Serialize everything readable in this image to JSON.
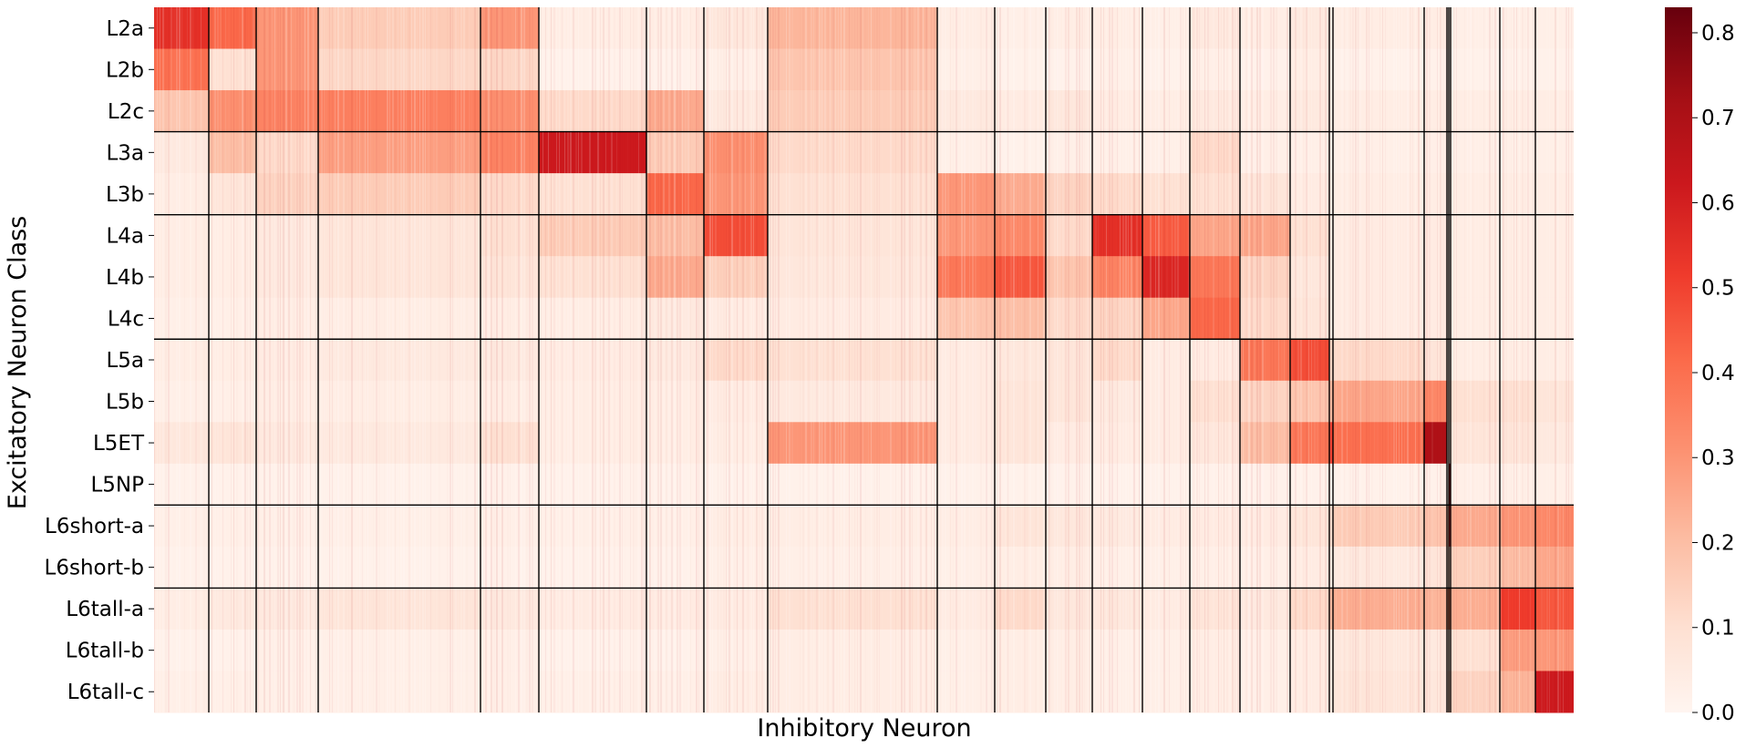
{
  "chart_data": {
    "type": "heatmap",
    "title": "",
    "xlabel": "Inhibitory Neuron",
    "ylabel": "Excitatory Neuron Class",
    "rows": [
      "L2a",
      "L2b",
      "L2c",
      "L3a",
      "L3b",
      "L4a",
      "L4b",
      "L4c",
      "L5a",
      "L5b",
      "L5ET",
      "L5NP",
      "L6short-a",
      "L6short-b",
      "L6tall-a",
      "L6tall-b",
      "L6tall-c"
    ],
    "row_group_boundaries_after": [
      3,
      5,
      8,
      12,
      14
    ],
    "column_groups": 25,
    "colormap": "Reds",
    "colorbar": {
      "min": 0.0,
      "max": 0.83,
      "ticks": [
        0.0,
        0.1,
        0.2,
        0.3,
        0.4,
        0.5,
        0.6,
        0.7,
        0.8
      ],
      "tick_labels": [
        "0.0",
        "0.1",
        "0.2",
        "0.3",
        "0.4",
        "0.5",
        "0.6",
        "0.7",
        "0.8"
      ]
    },
    "block_values": [
      [
        0.55,
        0.42,
        0.3,
        0.16,
        0.3,
        0.04,
        0.04,
        0.07,
        0.22,
        0.04,
        0.03,
        0.04,
        0.04,
        0.03,
        0.06,
        0.04,
        0.06,
        0.04,
        0.04,
        0.04,
        0.03,
        0.03,
        0.03,
        0.03,
        0.03
      ],
      [
        0.4,
        0.1,
        0.3,
        0.13,
        0.13,
        0.02,
        0.02,
        0.03,
        0.18,
        0.03,
        0.02,
        0.02,
        0.03,
        0.02,
        0.03,
        0.02,
        0.04,
        0.03,
        0.02,
        0.02,
        0.02,
        0.02,
        0.02,
        0.02,
        0.02
      ],
      [
        0.18,
        0.32,
        0.35,
        0.36,
        0.32,
        0.12,
        0.25,
        0.06,
        0.16,
        0.06,
        0.05,
        0.07,
        0.05,
        0.04,
        0.06,
        0.04,
        0.06,
        0.04,
        0.04,
        0.04,
        0.04,
        0.04,
        0.04,
        0.04,
        0.04
      ],
      [
        0.06,
        0.2,
        0.12,
        0.28,
        0.35,
        0.62,
        0.16,
        0.32,
        0.12,
        0.03,
        0.02,
        0.03,
        0.03,
        0.03,
        0.12,
        0.03,
        0.03,
        0.03,
        0.03,
        0.03,
        0.03,
        0.03,
        0.03,
        0.03,
        0.03
      ],
      [
        0.04,
        0.08,
        0.14,
        0.16,
        0.12,
        0.1,
        0.42,
        0.3,
        0.1,
        0.3,
        0.25,
        0.14,
        0.12,
        0.1,
        0.1,
        0.08,
        0.05,
        0.04,
        0.04,
        0.04,
        0.04,
        0.04,
        0.04,
        0.04,
        0.04
      ],
      [
        0.04,
        0.04,
        0.06,
        0.08,
        0.1,
        0.16,
        0.2,
        0.48,
        0.08,
        0.3,
        0.34,
        0.12,
        0.55,
        0.45,
        0.26,
        0.26,
        0.1,
        0.05,
        0.05,
        0.05,
        0.04,
        0.04,
        0.04,
        0.04,
        0.04
      ],
      [
        0.04,
        0.04,
        0.06,
        0.08,
        0.08,
        0.1,
        0.25,
        0.15,
        0.07,
        0.38,
        0.46,
        0.18,
        0.35,
        0.58,
        0.38,
        0.14,
        0.07,
        0.05,
        0.05,
        0.05,
        0.04,
        0.04,
        0.04,
        0.04,
        0.04
      ],
      [
        0.03,
        0.03,
        0.04,
        0.04,
        0.04,
        0.04,
        0.06,
        0.05,
        0.05,
        0.18,
        0.2,
        0.12,
        0.14,
        0.26,
        0.42,
        0.12,
        0.08,
        0.05,
        0.05,
        0.05,
        0.04,
        0.04,
        0.04,
        0.04,
        0.04
      ],
      [
        0.04,
        0.04,
        0.05,
        0.06,
        0.06,
        0.05,
        0.06,
        0.12,
        0.1,
        0.05,
        0.07,
        0.08,
        0.12,
        0.05,
        0.05,
        0.38,
        0.48,
        0.14,
        0.12,
        0.08,
        0.04,
        0.04,
        0.04,
        0.04,
        0.04
      ],
      [
        0.03,
        0.03,
        0.04,
        0.04,
        0.04,
        0.04,
        0.04,
        0.05,
        0.06,
        0.05,
        0.08,
        0.08,
        0.06,
        0.05,
        0.1,
        0.14,
        0.18,
        0.22,
        0.26,
        0.34,
        0.1,
        0.1,
        0.1,
        0.1,
        0.08
      ],
      [
        0.07,
        0.08,
        0.06,
        0.06,
        0.1,
        0.04,
        0.04,
        0.04,
        0.3,
        0.05,
        0.08,
        0.05,
        0.05,
        0.05,
        0.07,
        0.2,
        0.38,
        0.52,
        0.4,
        0.7,
        0.08,
        0.08,
        0.08,
        0.08,
        0.06
      ],
      [
        0.02,
        0.02,
        0.02,
        0.02,
        0.02,
        0.02,
        0.02,
        0.02,
        0.02,
        0.02,
        0.02,
        0.02,
        0.02,
        0.02,
        0.02,
        0.02,
        0.02,
        0.02,
        0.02,
        0.02,
        0.03,
        0.75,
        0.03,
        0.03,
        0.03
      ],
      [
        0.03,
        0.03,
        0.03,
        0.03,
        0.03,
        0.03,
        0.03,
        0.04,
        0.04,
        0.04,
        0.08,
        0.07,
        0.06,
        0.05,
        0.05,
        0.05,
        0.08,
        0.12,
        0.16,
        0.18,
        0.2,
        0.6,
        0.25,
        0.3,
        0.34
      ],
      [
        0.02,
        0.02,
        0.02,
        0.02,
        0.02,
        0.02,
        0.02,
        0.03,
        0.03,
        0.03,
        0.04,
        0.04,
        0.03,
        0.03,
        0.03,
        0.03,
        0.05,
        0.06,
        0.06,
        0.08,
        0.14,
        0.15,
        0.15,
        0.2,
        0.26
      ],
      [
        0.04,
        0.06,
        0.06,
        0.08,
        0.06,
        0.05,
        0.05,
        0.05,
        0.1,
        0.05,
        0.12,
        0.07,
        0.07,
        0.05,
        0.08,
        0.06,
        0.12,
        0.22,
        0.24,
        0.22,
        0.32,
        0.38,
        0.24,
        0.52,
        0.46
      ],
      [
        0.02,
        0.02,
        0.03,
        0.03,
        0.03,
        0.02,
        0.02,
        0.03,
        0.04,
        0.03,
        0.04,
        0.04,
        0.03,
        0.03,
        0.04,
        0.03,
        0.05,
        0.06,
        0.07,
        0.06,
        0.1,
        0.1,
        0.1,
        0.28,
        0.3
      ],
      [
        0.03,
        0.03,
        0.03,
        0.03,
        0.03,
        0.03,
        0.03,
        0.04,
        0.04,
        0.03,
        0.04,
        0.04,
        0.03,
        0.03,
        0.04,
        0.03,
        0.05,
        0.06,
        0.08,
        0.07,
        0.14,
        0.16,
        0.14,
        0.22,
        0.62
      ]
    ]
  }
}
